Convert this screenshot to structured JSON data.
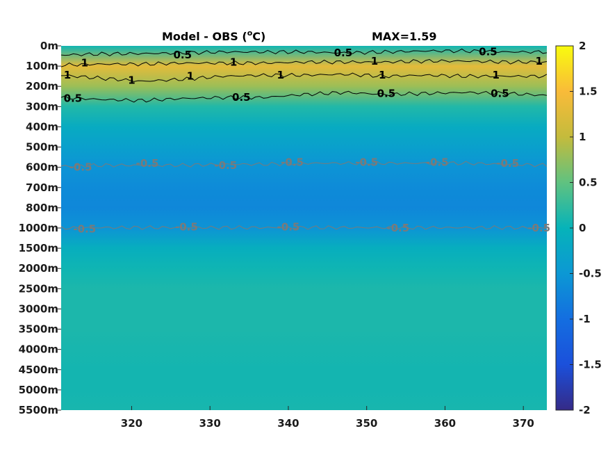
{
  "chart_data": {
    "type": "heatmap",
    "title": "Model - OBS (",
    "title_sup": "o",
    "title_unit": "C)",
    "max_label": "MAX=1.59",
    "x": {
      "ticks": [
        320,
        330,
        340,
        350,
        360,
        370
      ],
      "range": [
        311,
        373
      ]
    },
    "y": {
      "ticks": [
        "0m",
        "100m",
        "200m",
        "300m",
        "400m",
        "500m",
        "600m",
        "700m",
        "800m",
        "1000m",
        "1500m",
        "2000m",
        "2500m",
        "3000m",
        "3500m",
        "4000m",
        "4500m",
        "5000m",
        "5500m"
      ]
    },
    "colorbar": {
      "ticks": [
        "2",
        "1.5",
        "1",
        "0.5",
        "0",
        "-0.5",
        "-1",
        "-1.5",
        "-2"
      ],
      "range": [
        -2,
        2
      ],
      "colormap": "parula"
    },
    "depth_profile": [
      {
        "depth": "0m",
        "value": 0.05
      },
      {
        "depth": "100m",
        "value": 1.3
      },
      {
        "depth": "200m",
        "value": 0.8
      },
      {
        "depth": "300m",
        "value": 0.15
      },
      {
        "depth": "400m",
        "value": -0.15
      },
      {
        "depth": "500m",
        "value": -0.35
      },
      {
        "depth": "600m",
        "value": -0.55
      },
      {
        "depth": "700m",
        "value": -0.65
      },
      {
        "depth": "800m",
        "value": -0.7
      },
      {
        "depth": "1000m",
        "value": -0.55
      },
      {
        "depth": "1500m",
        "value": -0.1
      },
      {
        "depth": "2000m",
        "value": 0.05
      },
      {
        "depth": "2500m",
        "value": 0.12
      },
      {
        "depth": "3000m",
        "value": 0.12
      },
      {
        "depth": "3500m",
        "value": 0.12
      },
      {
        "depth": "4000m",
        "value": 0.1
      },
      {
        "depth": "4500m",
        "value": 0.08
      },
      {
        "depth": "5000m",
        "value": 0.08
      },
      {
        "depth": "5500m",
        "value": 0.1
      }
    ],
    "contour_labels": [
      {
        "text": "0.5",
        "x": 326.5,
        "depth_idx": 0.45,
        "color": "#000000"
      },
      {
        "text": "0.5",
        "x": 347,
        "depth_idx": 0.35,
        "color": "#000000"
      },
      {
        "text": "0.5",
        "x": 365.5,
        "depth_idx": 0.3,
        "color": "#000000"
      },
      {
        "text": "1",
        "x": 314,
        "depth_idx": 0.85,
        "color": "#000000"
      },
      {
        "text": "1",
        "x": 311.8,
        "depth_idx": 1.45,
        "color": "#000000"
      },
      {
        "text": "1",
        "x": 320,
        "depth_idx": 1.7,
        "color": "#000000"
      },
      {
        "text": "1",
        "x": 327.5,
        "depth_idx": 1.5,
        "color": "#000000"
      },
      {
        "text": "1",
        "x": 333,
        "depth_idx": 0.8,
        "color": "#000000"
      },
      {
        "text": "1",
        "x": 339,
        "depth_idx": 1.45,
        "color": "#000000"
      },
      {
        "text": "1",
        "x": 351,
        "depth_idx": 0.75,
        "color": "#000000"
      },
      {
        "text": "1",
        "x": 352,
        "depth_idx": 1.45,
        "color": "#000000"
      },
      {
        "text": "1",
        "x": 366.5,
        "depth_idx": 1.45,
        "color": "#000000"
      },
      {
        "text": "1",
        "x": 372,
        "depth_idx": 0.75,
        "color": "#000000"
      },
      {
        "text": "0.5",
        "x": 312.5,
        "depth_idx": 2.6,
        "color": "#000000"
      },
      {
        "text": "0.5",
        "x": 334,
        "depth_idx": 2.55,
        "color": "#000000"
      },
      {
        "text": "0.5",
        "x": 352.5,
        "depth_idx": 2.35,
        "color": "#000000"
      },
      {
        "text": "0.5",
        "x": 367,
        "depth_idx": 2.35,
        "color": "#000000"
      },
      {
        "text": "-0.5",
        "x": 313.5,
        "depth_idx": 6.0,
        "color": "#7a7a7a"
      },
      {
        "text": "-0.5",
        "x": 322,
        "depth_idx": 5.8,
        "color": "#7a7a7a"
      },
      {
        "text": "-0.5",
        "x": 332,
        "depth_idx": 5.9,
        "color": "#7a7a7a"
      },
      {
        "text": "-0.5",
        "x": 340.5,
        "depth_idx": 5.75,
        "color": "#7a7a7a"
      },
      {
        "text": "-0.5",
        "x": 350,
        "depth_idx": 5.75,
        "color": "#7a7a7a"
      },
      {
        "text": "-0.5",
        "x": 359,
        "depth_idx": 5.75,
        "color": "#7a7a7a"
      },
      {
        "text": "-0.5",
        "x": 368,
        "depth_idx": 5.8,
        "color": "#7a7a7a"
      },
      {
        "text": "-0.5",
        "x": 314,
        "depth_idx": 9.05,
        "color": "#7a7a7a"
      },
      {
        "text": "-0.5",
        "x": 327,
        "depth_idx": 8.95,
        "color": "#7a7a7a"
      },
      {
        "text": "-0.5",
        "x": 340,
        "depth_idx": 8.95,
        "color": "#7a7a7a"
      },
      {
        "text": "-0.5",
        "x": 354,
        "depth_idx": 9.0,
        "color": "#7a7a7a"
      },
      {
        "text": "-0.5",
        "x": 372,
        "depth_idx": 9.0,
        "color": "#7a7a7a"
      }
    ],
    "contour_lines": [
      {
        "level": 0.5,
        "color": "#000000",
        "depth_idx": [
          0.45,
          0.4,
          0.38,
          0.35,
          0.3,
          0.3,
          0.3,
          0.35,
          0.3,
          0.25,
          0.25,
          0.3,
          0.3
        ]
      },
      {
        "level": 1,
        "color": "#000000",
        "depth_idx": [
          0.95,
          0.9,
          0.9,
          0.85,
          0.85,
          0.85,
          0.8,
          0.8,
          0.8,
          0.75,
          0.75,
          0.8,
          0.8
        ]
      },
      {
        "level": 1,
        "color": "#000000",
        "depth_idx": [
          1.45,
          1.6,
          1.75,
          1.65,
          1.5,
          1.45,
          1.45,
          1.4,
          1.5,
          1.45,
          1.5,
          1.5,
          1.5
        ]
      },
      {
        "level": 0.5,
        "color": "#000000",
        "depth_idx": [
          2.55,
          2.65,
          2.7,
          2.6,
          2.55,
          2.55,
          2.4,
          2.3,
          2.4,
          2.35,
          2.3,
          2.35,
          2.45
        ]
      },
      {
        "level": -0.5,
        "color": "#7a7a7a",
        "depth_idx": [
          5.95,
          5.9,
          5.9,
          5.9,
          5.85,
          5.85,
          5.8,
          5.8,
          5.8,
          5.8,
          5.8,
          5.85,
          5.9
        ]
      },
      {
        "level": -0.5,
        "color": "#7a7a7a",
        "depth_idx": [
          9.0,
          8.98,
          8.98,
          8.98,
          8.98,
          8.98,
          8.98,
          8.98,
          8.98,
          8.98,
          8.98,
          8.98,
          9.0
        ]
      }
    ]
  }
}
